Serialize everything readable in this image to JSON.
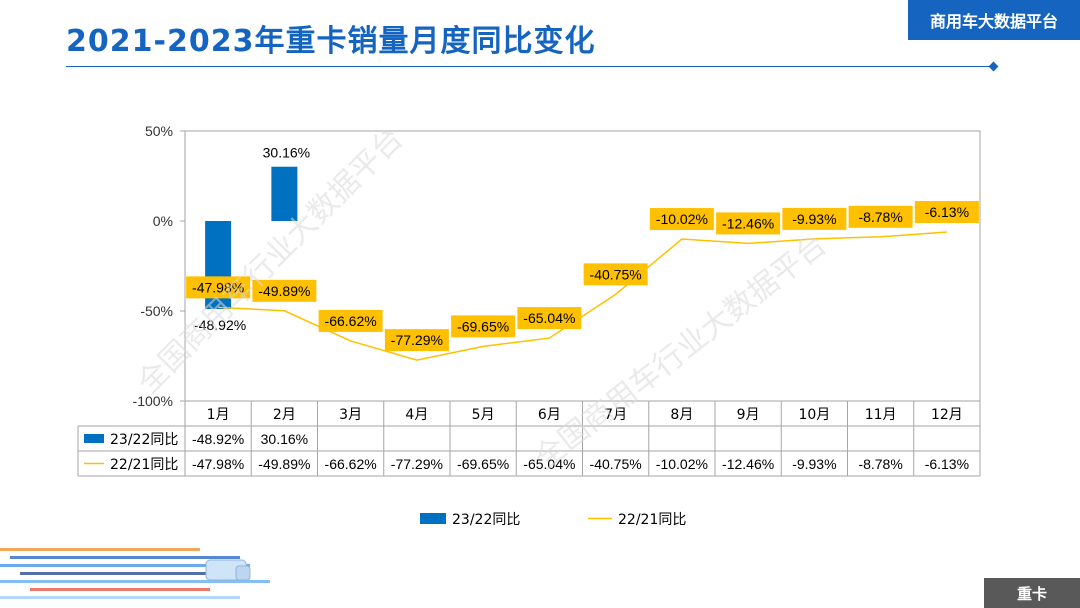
{
  "header": {
    "title": "2021-2023年重卡销量月度同比变化",
    "brand": "商用车大数据平台"
  },
  "footer": {
    "tag": "重卡"
  },
  "watermark": "全国商用车行业大数据平台",
  "colors": {
    "accent": "#1565c0",
    "bar": "#0070c0",
    "line": "#ffc000",
    "label_bg": "#ffc000"
  },
  "chart_data": {
    "type": "bar+line",
    "categories": [
      "1月",
      "2月",
      "3月",
      "4月",
      "5月",
      "6月",
      "7月",
      "8月",
      "9月",
      "10月",
      "11月",
      "12月"
    ],
    "ylim": [
      -100,
      50
    ],
    "yticks": [
      50,
      0,
      -50,
      -100
    ],
    "ytick_labels": [
      "50%",
      "0%",
      "-50%",
      "-100%"
    ],
    "series": [
      {
        "name": "23/22同比",
        "kind": "bar",
        "values": [
          -48.92,
          30.16,
          null,
          null,
          null,
          null,
          null,
          null,
          null,
          null,
          null,
          null
        ],
        "labels": [
          "-48.92%",
          "30.16%",
          "",
          "",
          "",
          "",
          "",
          "",
          "",
          "",
          "",
          ""
        ]
      },
      {
        "name": "22/21同比",
        "kind": "line",
        "values": [
          -47.98,
          -49.89,
          -66.62,
          -77.29,
          -69.65,
          -65.04,
          -40.75,
          -10.02,
          -12.46,
          -9.93,
          -8.78,
          -6.13
        ],
        "labels": [
          "-47.98%",
          "-49.89%",
          "-66.62%",
          "-77.29%",
          "-69.65%",
          "-65.04%",
          "-40.75%",
          "-10.02%",
          "-12.46%",
          "-9.93%",
          "-8.78%",
          "-6.13%"
        ]
      }
    ],
    "legend": "bottom"
  }
}
